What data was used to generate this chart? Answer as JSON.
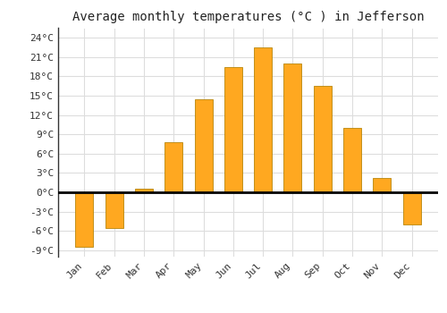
{
  "title": "Average monthly temperatures (°C ) in Jefferson",
  "months": [
    "Jan",
    "Feb",
    "Mar",
    "Apr",
    "May",
    "Jun",
    "Jul",
    "Aug",
    "Sep",
    "Oct",
    "Nov",
    "Dec"
  ],
  "values": [
    -8.5,
    -5.5,
    0.5,
    7.8,
    14.5,
    19.5,
    22.5,
    20.0,
    16.5,
    10.0,
    2.2,
    -5.0
  ],
  "bar_color": "#FFA820",
  "bar_edge_color": "#B8860B",
  "ylim": [
    -10,
    25.5
  ],
  "yticks": [
    -9,
    -6,
    -3,
    0,
    3,
    6,
    9,
    12,
    15,
    18,
    21,
    24
  ],
  "ytick_labels": [
    "-9°C",
    "-6°C",
    "-3°C",
    "0°C",
    "3°C",
    "6°C",
    "9°C",
    "12°C",
    "15°C",
    "18°C",
    "21°C",
    "24°C"
  ],
  "grid_color": "#dddddd",
  "background_color": "#ffffff",
  "title_fontsize": 10,
  "tick_fontsize": 8,
  "bar_width": 0.6
}
